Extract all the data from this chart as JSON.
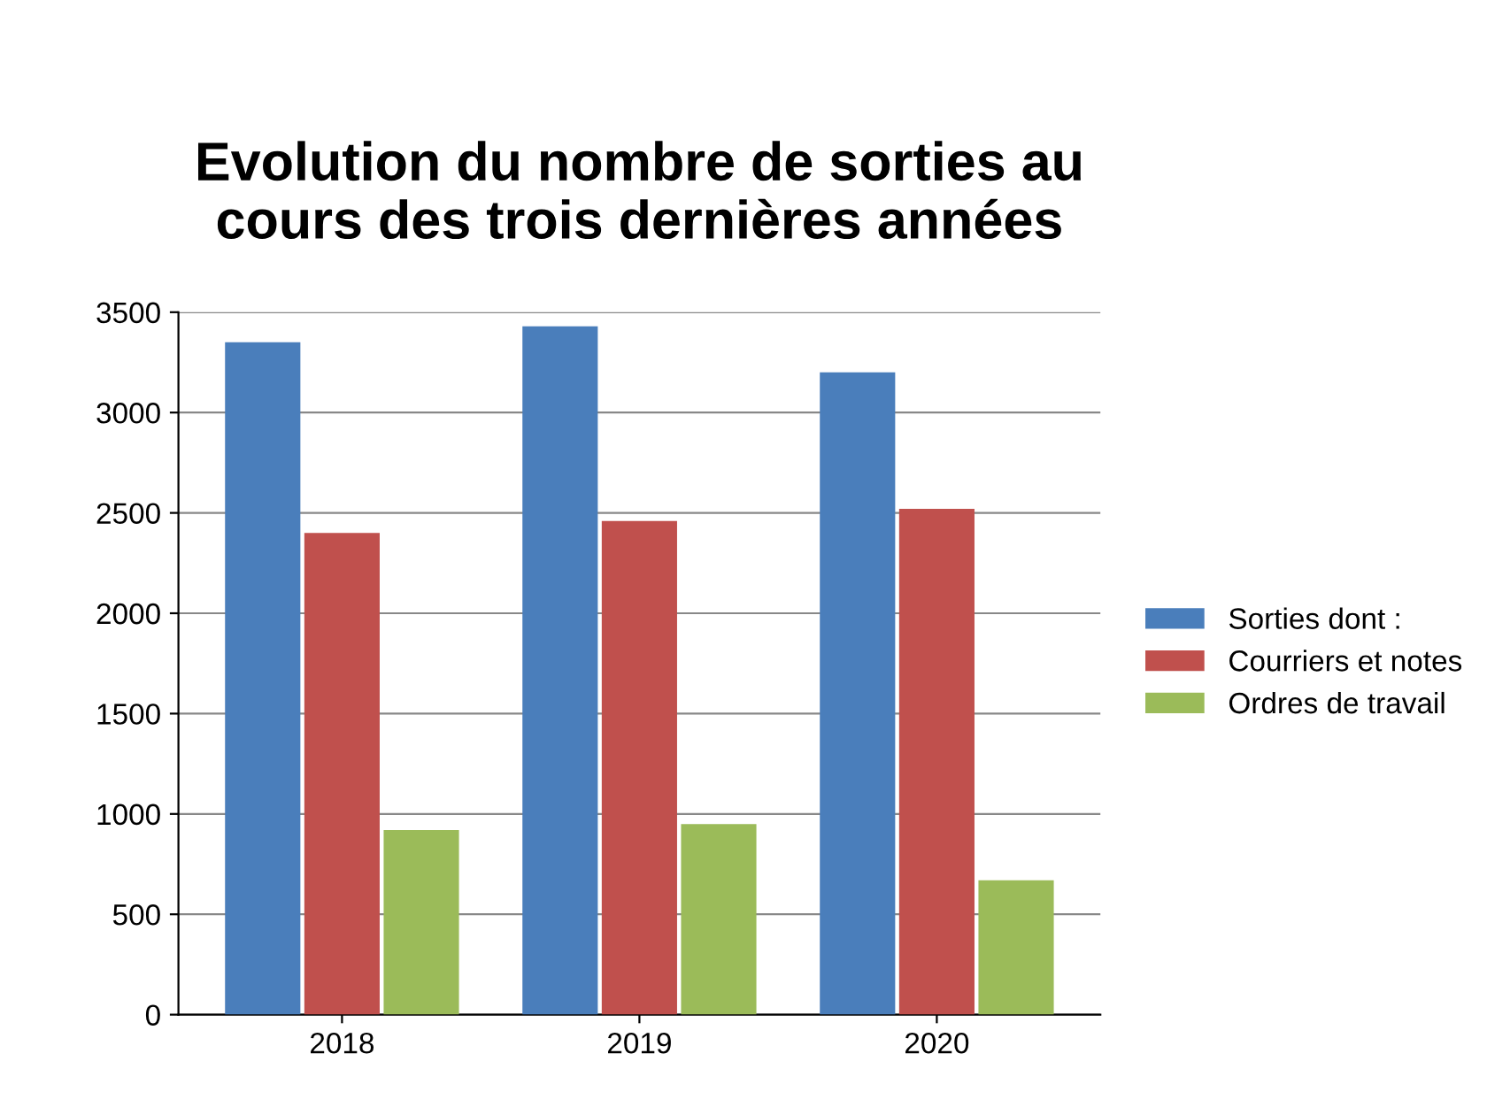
{
  "chart_data": {
    "type": "bar",
    "title": "Evolution du nombre de sorties au\ncours des trois dernières années",
    "categories": [
      "2018",
      "2019",
      "2020"
    ],
    "series": [
      {
        "name": "Sorties dont :",
        "color": "#4a7ebb",
        "values": [
          3350,
          3430,
          3200
        ]
      },
      {
        "name": "Courriers et notes",
        "color": "#c0504d",
        "values": [
          2400,
          2460,
          2520
        ]
      },
      {
        "name": "Ordres de travail",
        "color": "#9bbb59",
        "values": [
          920,
          950,
          670
        ]
      }
    ],
    "ylim": [
      0,
      3500
    ],
    "yticks": [
      0,
      500,
      1000,
      1500,
      2000,
      2500,
      3000,
      3500
    ],
    "grid": "y",
    "legend": "right"
  }
}
